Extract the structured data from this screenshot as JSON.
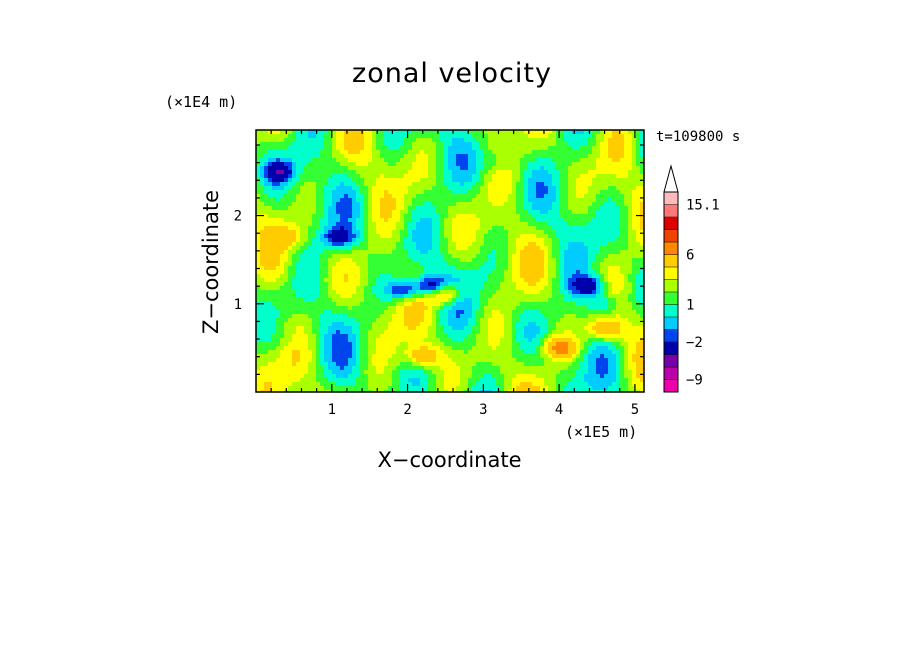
{
  "chart_data": {
    "type": "heatmap",
    "title": "zonal velocity",
    "xlabel": "X−coordinate",
    "ylabel": "Z−coordinate",
    "x_unit": "(×1E5 m)",
    "y_unit": "(×1E4 m)",
    "time_label": "t=109800 s",
    "xlim": [
      0,
      5.12
    ],
    "ylim": [
      0,
      2.97
    ],
    "x_ticks": [
      1,
      2,
      3,
      4,
      5
    ],
    "y_ticks": [
      1,
      2
    ],
    "colorbar": {
      "levels": [
        -12,
        -9,
        -6,
        -4,
        -2,
        -1,
        0,
        1,
        2,
        3,
        4,
        6,
        8,
        10,
        12,
        15.1
      ],
      "colors": [
        "#ee00aa",
        "#bb00aa",
        "#7700aa",
        "#0000aa",
        "#0044ee",
        "#00ccff",
        "#00ffcc",
        "#33ff33",
        "#aaff00",
        "#ffff00",
        "#ffcc00",
        "#ff8800",
        "#ee4400",
        "#dd0000",
        "#ff7777",
        "#ffbbbb"
      ],
      "tick_labels": [
        "15.1",
        "6",
        "1",
        "−2",
        "−9"
      ],
      "tick_values": [
        15.1,
        6,
        1,
        -2,
        -9
      ],
      "extend": "max"
    },
    "field_features": [
      {
        "x": 1.95,
        "z": 1.15,
        "value": -4.5
      },
      {
        "x": 2.3,
        "z": 1.2,
        "value": -5
      },
      {
        "x": 2.5,
        "z": 1.1,
        "value": 5
      },
      {
        "x": 4.4,
        "z": 1.2,
        "value": -5
      },
      {
        "x": 4.6,
        "z": 1.0,
        "value": -3
      },
      {
        "x": 3.2,
        "z": 2.6,
        "value": -1.5
      },
      {
        "x": 0.45,
        "z": 1.75,
        "value": 2
      },
      {
        "x": 2.2,
        "z": 0.4,
        "value": 4
      },
      {
        "x": 4.0,
        "z": 0.5,
        "value": 5
      },
      {
        "x": 4.6,
        "z": 0.7,
        "value": 4.5
      },
      {
        "x": 0.3,
        "z": 2.5,
        "value": -4
      },
      {
        "x": 1.1,
        "z": 1.75,
        "value": -4
      },
      {
        "x": 0.45,
        "z": 0.6,
        "value": -0.5
      }
    ]
  }
}
